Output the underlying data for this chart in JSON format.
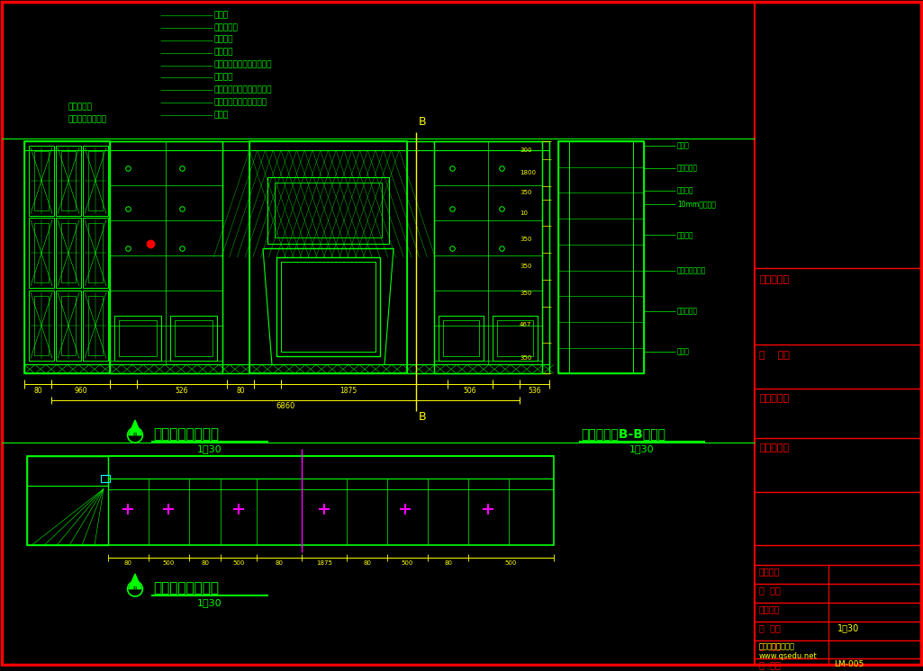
{
  "bg_color": "#000000",
  "line_color": "#00ff00",
  "yellow_color": "#ffff00",
  "cyan_color": "#00ffff",
  "magenta_color": "#ff00ff",
  "red_color": "#ff0000",
  "white_color": "#ffffff",
  "gray_color": "#808080",
  "title_elev": "餐厅酒水柜立面图",
  "scale_elev": "1：30",
  "title_section": "餐厅酒水柜B-B剖面图",
  "scale_section": "1：30",
  "title_plan": "餐厅酒水柜平面图",
  "scale_plan": "1：30",
  "info_labels": [
    "工程名称：",
    "业    主：",
    "图纸说明：",
    "设计说明："
  ],
  "bottom_labels": [
    "设计师：",
    "审  核：",
    "施工图：",
    "比  例：",
    "日  期：",
    "图  号："
  ],
  "scale_value": "1：30",
  "fig_no": "LM-005",
  "watermark_line1": "齐生设计职业学校",
  "watermark_line2": "www.qsedu.net",
  "note_lines": [
    "天龙层",
    "木线条扣白",
    "内贴墙纸",
    "玻璃厂板",
    "原墙贴艺术砖（业主自购）",
    "台面扣白",
    "白色柜门上贴实木线条扣白",
    "大理石壁炉（业主自购）",
    "地台位"
  ],
  "note_lines_left": [
    "木线条扣白",
    "实木雕花外贴清板"
  ],
  "section_labels_right": [
    "天花层",
    "木线条扣白",
    "内贴墙纸",
    "10mm玻璃厂板",
    "台面扣白",
    "内贴白色防火板",
    "木线条扣白",
    "地台位"
  ]
}
